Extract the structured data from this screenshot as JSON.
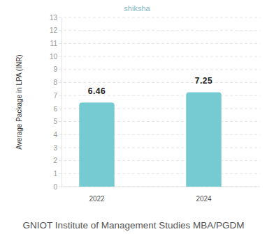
{
  "chart_data": {
    "type": "bar",
    "title": "GNIOT Institute of Management Studies MBA/PGDM",
    "watermark": "shiksha",
    "y_label": "Average Package in LPA (INR)",
    "categories": [
      "2022",
      "2024"
    ],
    "values": [
      6.46,
      7.25
    ],
    "color": "#76cbd2",
    "ylim": [
      0,
      13
    ],
    "yticks": [
      0,
      1,
      2,
      3,
      4,
      5,
      6,
      7,
      8,
      9,
      10,
      11,
      12,
      13
    ],
    "grid": true,
    "data_labels": true
  }
}
